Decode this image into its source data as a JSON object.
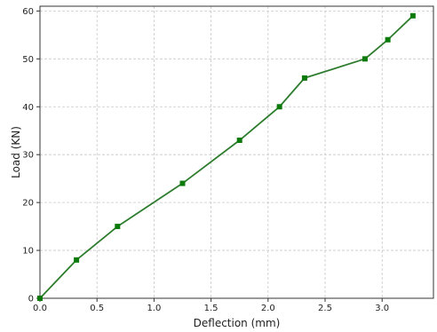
{
  "chart_data": {
    "type": "line",
    "title": "",
    "xlabel": "Deflection (mm)",
    "ylabel": "Load (KN)",
    "xlim": [
      0,
      3.45
    ],
    "ylim": [
      0,
      61
    ],
    "x_ticks": [
      0.0,
      0.5,
      1.0,
      1.5,
      2.0,
      2.5,
      3.0
    ],
    "x_tick_labels": [
      "0.0",
      "0.5",
      "1.0",
      "1.5",
      "2.0",
      "2.5",
      "3.0"
    ],
    "y_ticks": [
      0,
      10,
      20,
      30,
      40,
      50,
      60
    ],
    "y_tick_labels": [
      "0",
      "10",
      "20",
      "30",
      "40",
      "50",
      "60"
    ],
    "grid": true,
    "line_color": "#2e7d2e",
    "marker_color": "#0b7a0b",
    "series": [
      {
        "x": [
          0.0,
          0.32,
          0.68,
          1.25,
          1.75,
          2.1,
          2.32,
          2.85,
          3.05,
          3.27
        ],
        "y": [
          0,
          8,
          15,
          24,
          33,
          40,
          46,
          50,
          54,
          59
        ]
      }
    ]
  }
}
